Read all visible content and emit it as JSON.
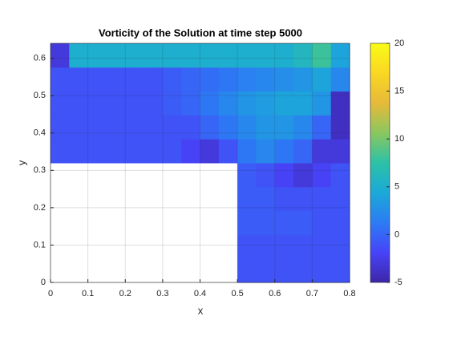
{
  "chart_data": {
    "type": "heatmap",
    "title": "Vorticity of the Solution at time step 5000",
    "xlabel": "x",
    "ylabel": "y",
    "x": [
      0,
      0.05,
      0.1,
      0.15,
      0.2,
      0.25,
      0.3,
      0.35,
      0.4,
      0.45,
      0.5,
      0.55,
      0.6,
      0.65,
      0.7,
      0.75,
      0.8
    ],
    "y": [
      0,
      0.064,
      0.128,
      0.192,
      0.256,
      0.32,
      0.384,
      0.448,
      0.512,
      0.576,
      0.64
    ],
    "z": [
      [
        null,
        null,
        null,
        null,
        null,
        null,
        null,
        null,
        null,
        null,
        -1,
        -1,
        -1,
        -1,
        -1,
        -1
      ],
      [
        null,
        null,
        null,
        null,
        null,
        null,
        null,
        null,
        null,
        null,
        -1,
        -1,
        -1,
        -1,
        -1,
        -1
      ],
      [
        null,
        null,
        null,
        null,
        null,
        null,
        null,
        null,
        null,
        null,
        -0.5,
        -0.5,
        -0.5,
        -0.5,
        -1,
        -1
      ],
      [
        null,
        null,
        null,
        null,
        null,
        null,
        null,
        null,
        null,
        null,
        -0.5,
        -0.5,
        -1,
        -1,
        -1,
        -1
      ],
      [
        null,
        null,
        null,
        null,
        null,
        null,
        null,
        null,
        null,
        null,
        -0.5,
        -1,
        -2,
        -3,
        -2,
        -1
      ],
      [
        -1,
        -1,
        -1,
        -1,
        -1,
        -1,
        -1,
        -2,
        -3,
        -1,
        1,
        2,
        1,
        0,
        -3,
        -3
      ],
      [
        -1,
        -1,
        -1,
        -1,
        -1,
        -1,
        -1,
        -1,
        0,
        1,
        2,
        3,
        3,
        2,
        0,
        -4
      ],
      [
        -1,
        -1,
        -1,
        -1,
        -1,
        -1,
        -0.5,
        0,
        1,
        2,
        3,
        3.5,
        4,
        4,
        3,
        -4
      ],
      [
        -1,
        -1,
        -1,
        -1,
        -1,
        -1,
        -0.5,
        0,
        0.5,
        1,
        1.5,
        2,
        2.5,
        3,
        4,
        2
      ],
      [
        -3,
        5,
        5,
        5,
        5,
        5,
        5,
        5,
        5,
        5,
        5,
        5,
        5,
        6,
        8,
        4
      ]
    ],
    "xlim": [
      0,
      0.8
    ],
    "ylim": [
      0,
      0.64
    ],
    "xticks": [
      0,
      0.1,
      0.2,
      0.3,
      0.4,
      0.5,
      0.6,
      0.7,
      0.8
    ],
    "yticks": [
      0,
      0.1,
      0.2,
      0.3,
      0.4,
      0.5,
      0.6
    ],
    "clim": [
      -5,
      20
    ],
    "cticks": [
      -5,
      0,
      5,
      10,
      15,
      20
    ],
    "colormap": [
      "#3e26a8",
      "#4743f8",
      "#2c7cf4",
      "#1ba9d8",
      "#2cc1a7",
      "#8ac75f",
      "#e6ba39",
      "#fad723",
      "#f9fb15"
    ],
    "grid": true
  }
}
